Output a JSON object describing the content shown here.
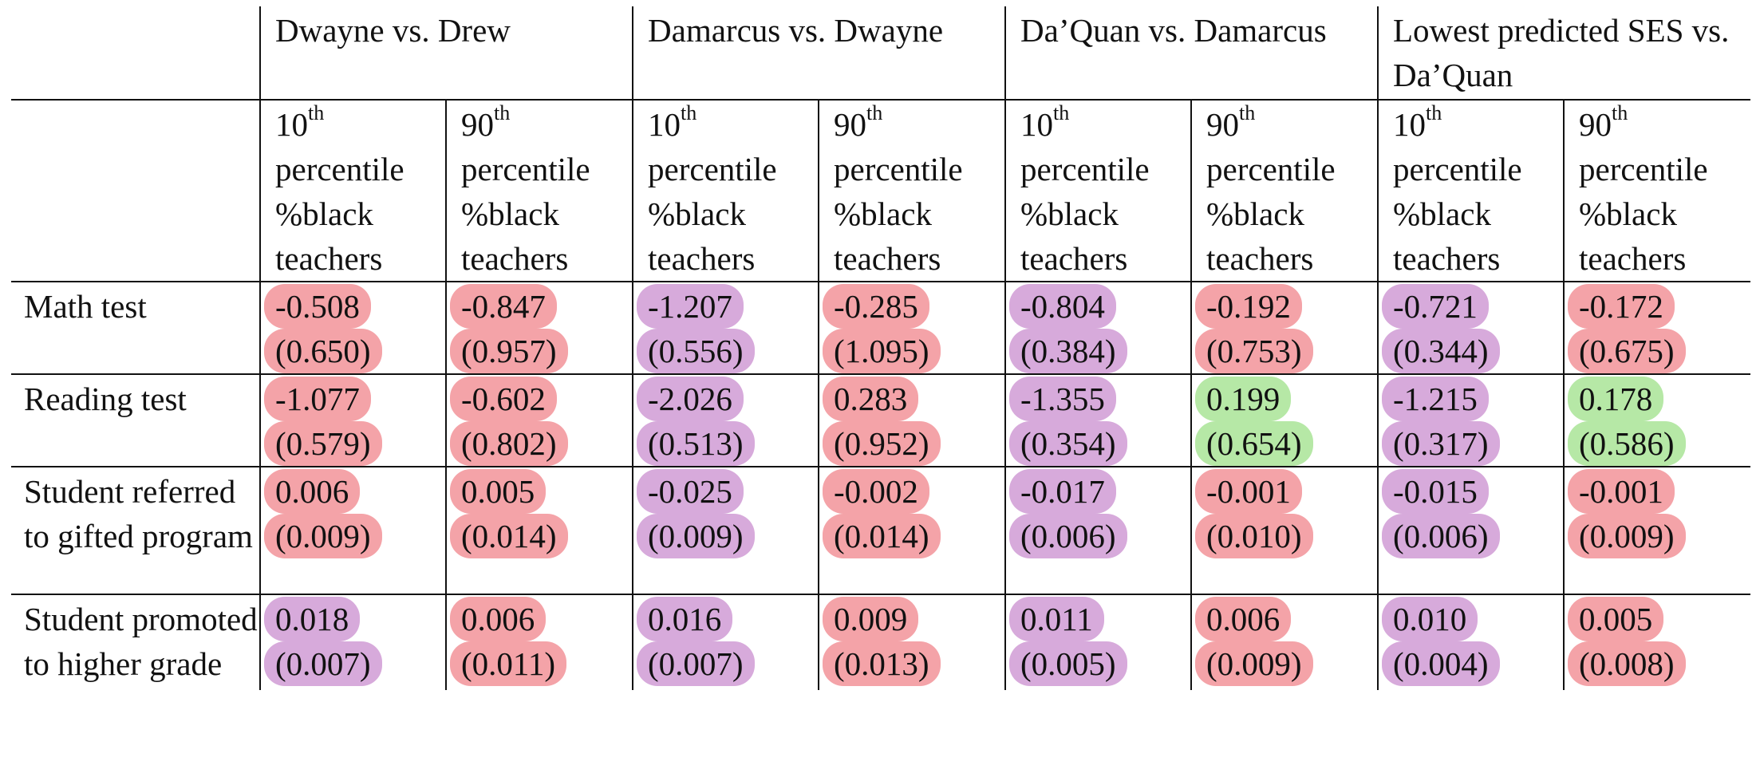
{
  "group_headers": [
    "Dwayne vs. Drew",
    "Damarcus vs. Dwayne",
    "Da’Quan vs. Damarcus",
    "Lowest predicted SES vs. Da’Quan"
  ],
  "sub_headers": {
    "p10_num": "10",
    "p90_num": "90",
    "th": "th",
    "rest": "percentile %black teachers"
  },
  "colors": {
    "pink": "#f4a3a8",
    "purple": "#d7aadb",
    "green": "#b6e8a6"
  },
  "rows": [
    {
      "label": "Math test",
      "cells": [
        {
          "est": "-0.508",
          "se": "(0.650)",
          "color": "pink"
        },
        {
          "est": "-0.847",
          "se": "(0.957)",
          "color": "pink"
        },
        {
          "est": "-1.207",
          "se": "(0.556)",
          "color": "purple"
        },
        {
          "est": "-0.285",
          "se": "(1.095)",
          "color": "pink"
        },
        {
          "est": "-0.804",
          "se": "(0.384)",
          "color": "purple"
        },
        {
          "est": "-0.192",
          "se": "(0.753)",
          "color": "pink"
        },
        {
          "est": "-0.721",
          "se": "(0.344)",
          "color": "purple"
        },
        {
          "est": "-0.172",
          "se": "(0.675)",
          "color": "pink"
        }
      ]
    },
    {
      "label": "Reading test",
      "cells": [
        {
          "est": "-1.077",
          "se": "(0.579)",
          "color": "pink"
        },
        {
          "est": "-0.602",
          "se": "(0.802)",
          "color": "pink"
        },
        {
          "est": "-2.026",
          "se": "(0.513)",
          "color": "purple"
        },
        {
          "est": "0.283",
          "se": "(0.952)",
          "color": "pink"
        },
        {
          "est": "-1.355",
          "se": "(0.354)",
          "color": "purple"
        },
        {
          "est": "0.199",
          "se": "(0.654)",
          "color": "green"
        },
        {
          "est": "-1.215",
          "se": "(0.317)",
          "color": "purple"
        },
        {
          "est": "0.178",
          "se": "(0.586)",
          "color": "green"
        }
      ]
    },
    {
      "label": "Student referred to gifted program",
      "cells": [
        {
          "est": "0.006",
          "se": "(0.009)",
          "color": "pink"
        },
        {
          "est": "0.005",
          "se": "(0.014)",
          "color": "pink"
        },
        {
          "est": "-0.025",
          "se": "(0.009)",
          "color": "purple"
        },
        {
          "est": "-0.002",
          "se": "(0.014)",
          "color": "pink"
        },
        {
          "est": "-0.017",
          "se": "(0.006)",
          "color": "purple"
        },
        {
          "est": "-0.001",
          "se": "(0.010)",
          "color": "pink"
        },
        {
          "est": "-0.015",
          "se": "(0.006)",
          "color": "purple"
        },
        {
          "est": "-0.001",
          "se": "(0.009)",
          "color": "pink"
        }
      ]
    },
    {
      "label": "Student promoted to higher grade",
      "cells": [
        {
          "est": "0.018",
          "se": "(0.007)",
          "color": "purple"
        },
        {
          "est": "0.006",
          "se": "(0.011)",
          "color": "pink"
        },
        {
          "est": "0.016",
          "se": "(0.007)",
          "color": "purple"
        },
        {
          "est": "0.009",
          "se": "(0.013)",
          "color": "pink"
        },
        {
          "est": "0.011",
          "se": "(0.005)",
          "color": "purple"
        },
        {
          "est": "0.006",
          "se": "(0.009)",
          "color": "pink"
        },
        {
          "est": "0.010",
          "se": "(0.004)",
          "color": "purple"
        },
        {
          "est": "0.005",
          "se": "(0.008)",
          "color": "pink"
        }
      ]
    }
  ]
}
